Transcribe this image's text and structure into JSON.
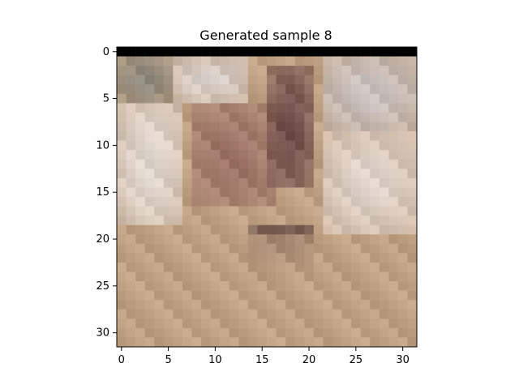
{
  "chart_data": {
    "type": "heatmap",
    "title": "Generated sample 8",
    "xlabel": "",
    "ylabel": "",
    "grid": false,
    "rows": 32,
    "cols": 32,
    "xlim": [
      -0.5,
      31.5
    ],
    "ylim": [
      31.5,
      -0.5
    ],
    "xticks": [
      0,
      5,
      10,
      15,
      20,
      25,
      30
    ],
    "yticks": [
      0,
      5,
      10,
      15,
      20,
      25,
      30
    ],
    "top_row_color": "#000000",
    "image_color_regions": [
      {
        "name": "top-left",
        "color": "#8f8a7d",
        "row_range": [
          1,
          5
        ],
        "col_range": [
          0,
          5
        ]
      },
      {
        "name": "top-middle",
        "color": "#d7cfc9",
        "row_range": [
          1,
          5
        ],
        "col_range": [
          6,
          13
        ]
      },
      {
        "name": "top-right",
        "color": "#c8c1be",
        "row_range": [
          1,
          8
        ],
        "col_range": [
          22,
          31
        ]
      },
      {
        "name": "left-pale",
        "color": "#e1d9d1",
        "row_range": [
          6,
          18
        ],
        "col_range": [
          0,
          6
        ]
      },
      {
        "name": "center-brown",
        "color": "#9d7468",
        "row_range": [
          6,
          16
        ],
        "col_range": [
          8,
          16
        ]
      },
      {
        "name": "upper-dark",
        "color": "#6f4c49",
        "row_range": [
          2,
          14
        ],
        "col_range": [
          16,
          20
        ]
      },
      {
        "name": "right-pale",
        "color": "#dfd3c9",
        "row_range": [
          9,
          19
        ],
        "col_range": [
          22,
          31
        ]
      },
      {
        "name": "lower-dark",
        "color": "#4f3b38",
        "row_range": [
          19,
          24
        ],
        "col_range": [
          14,
          20
        ]
      },
      {
        "name": "bottom-tan",
        "color": "#c0a083",
        "row_range": [
          20,
          31
        ],
        "col_range": [
          0,
          31
        ]
      }
    ]
  }
}
